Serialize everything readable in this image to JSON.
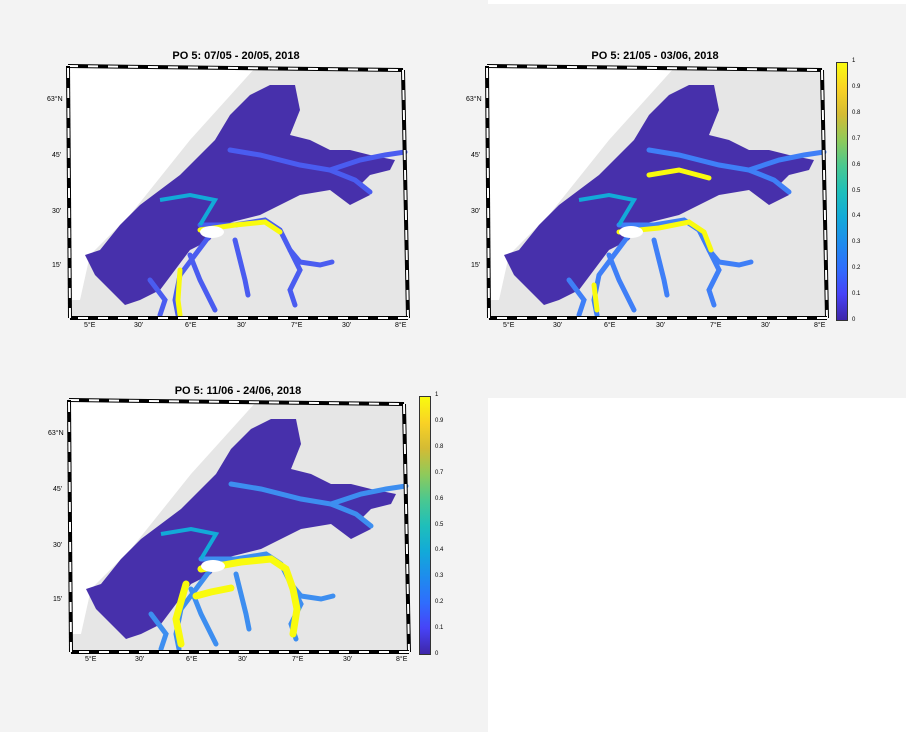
{
  "figure": {
    "panels": [
      {
        "title": "PO 5: 07/05 - 20/05, 2018",
        "has_colorbar": false
      },
      {
        "title": "PO 5: 21/05 - 03/06, 2018",
        "has_colorbar": true
      },
      {
        "title": "PO 5: 11/06 - 24/06, 2018",
        "has_colorbar": true
      }
    ],
    "lat_labels": [
      "63°N",
      "45'",
      "30'",
      "15'"
    ],
    "lon_labels": [
      "5°E",
      "30'",
      "6°E",
      "30'",
      "7°E",
      "30'",
      "8°E"
    ],
    "colorbar": {
      "ticks": [
        "0",
        "0.1",
        "0.2",
        "0.3",
        "0.4",
        "0.5",
        "0.6",
        "0.7",
        "0.8",
        "0.9",
        "1"
      ],
      "range": [
        0,
        1
      ],
      "colormap": "parula"
    },
    "colors": {
      "ocean_low": "#3e26a8",
      "mid": "#12aad8",
      "high": "#f9fb0e",
      "land": "#e6e6e6"
    }
  }
}
